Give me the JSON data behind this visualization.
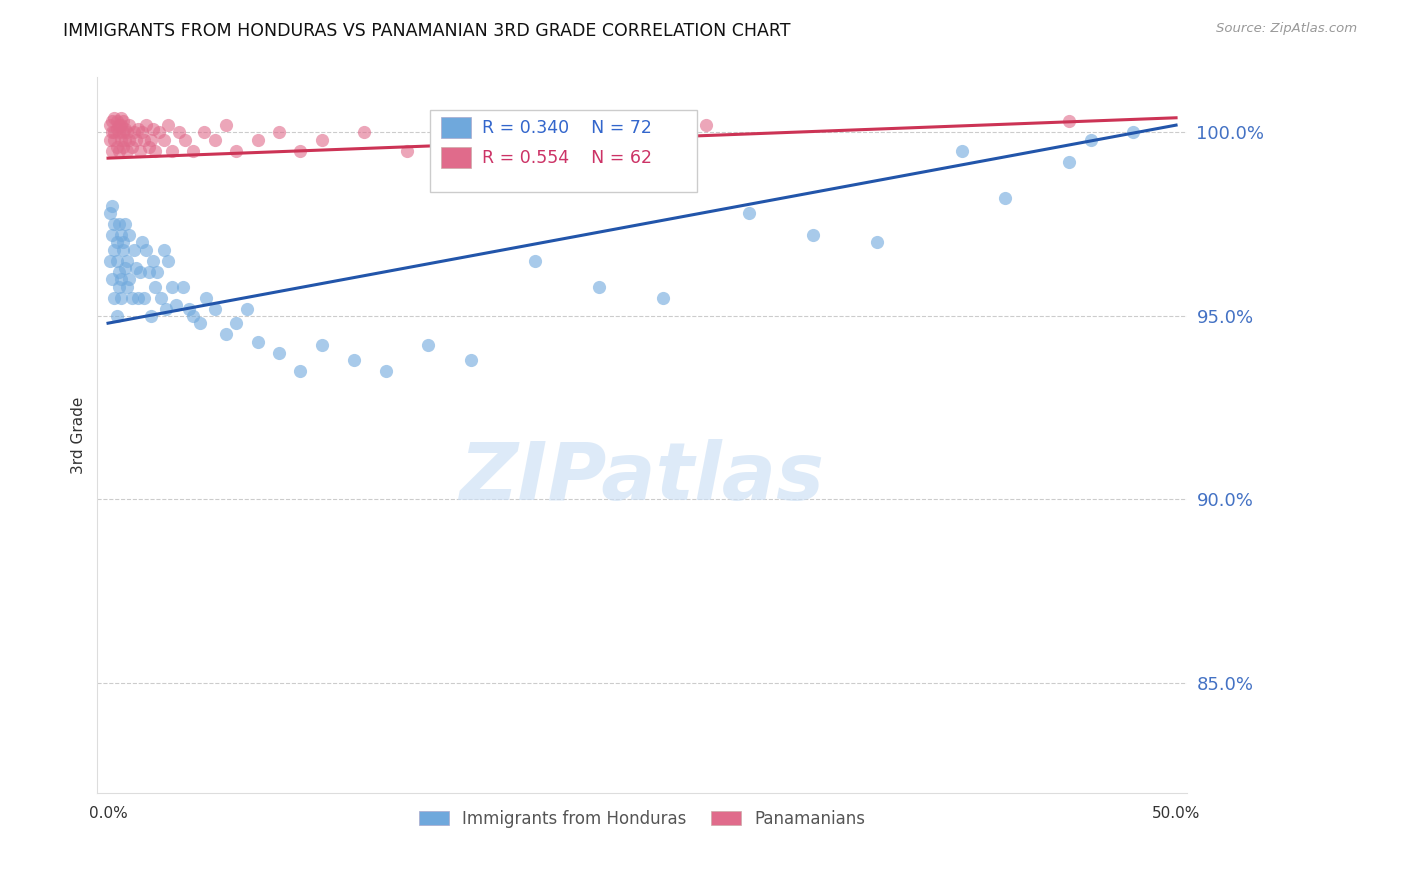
{
  "title": "IMMIGRANTS FROM HONDURAS VS PANAMANIAN 3RD GRADE CORRELATION CHART",
  "source": "Source: ZipAtlas.com",
  "ylabel": "3rd Grade",
  "legend_blue_r": "R = 0.340",
  "legend_blue_n": "N = 72",
  "legend_pink_r": "R = 0.554",
  "legend_pink_n": "N = 62",
  "legend_label_blue": "Immigrants from Honduras",
  "legend_label_pink": "Panamanians",
  "blue_color": "#6fa8dc",
  "pink_color": "#e06b8b",
  "blue_line_color": "#2255aa",
  "pink_line_color": "#cc3355",
  "ylim_low": 82.0,
  "ylim_high": 101.5,
  "xlim_low": -0.005,
  "xlim_high": 0.505,
  "ytick_vals": [
    85.0,
    90.0,
    95.0,
    100.0
  ],
  "blue_trend_x0": 0.0,
  "blue_trend_x1": 0.5,
  "blue_trend_y0": 94.8,
  "blue_trend_y1": 100.2,
  "pink_trend_x0": 0.0,
  "pink_trend_x1": 0.5,
  "pink_trend_y0": 99.3,
  "pink_trend_y1": 100.4,
  "blue_dots_x": [
    0.001,
    0.001,
    0.002,
    0.002,
    0.002,
    0.003,
    0.003,
    0.003,
    0.004,
    0.004,
    0.004,
    0.005,
    0.005,
    0.005,
    0.006,
    0.006,
    0.006,
    0.007,
    0.007,
    0.008,
    0.008,
    0.009,
    0.009,
    0.01,
    0.01,
    0.011,
    0.012,
    0.013,
    0.014,
    0.015,
    0.016,
    0.017,
    0.018,
    0.019,
    0.02,
    0.021,
    0.022,
    0.023,
    0.025,
    0.026,
    0.027,
    0.028,
    0.03,
    0.032,
    0.035,
    0.038,
    0.04,
    0.043,
    0.046,
    0.05,
    0.055,
    0.06,
    0.065,
    0.07,
    0.08,
    0.09,
    0.1,
    0.115,
    0.13,
    0.15,
    0.17,
    0.2,
    0.23,
    0.26,
    0.3,
    0.33,
    0.36,
    0.4,
    0.42,
    0.45,
    0.46,
    0.48
  ],
  "blue_dots_y": [
    96.5,
    97.8,
    96.0,
    97.2,
    98.0,
    95.5,
    96.8,
    97.5,
    95.0,
    96.5,
    97.0,
    96.2,
    97.5,
    95.8,
    96.0,
    97.2,
    95.5,
    96.8,
    97.0,
    96.3,
    97.5,
    95.8,
    96.5,
    96.0,
    97.2,
    95.5,
    96.8,
    96.3,
    95.5,
    96.2,
    97.0,
    95.5,
    96.8,
    96.2,
    95.0,
    96.5,
    95.8,
    96.2,
    95.5,
    96.8,
    95.2,
    96.5,
    95.8,
    95.3,
    95.8,
    95.2,
    95.0,
    94.8,
    95.5,
    95.2,
    94.5,
    94.8,
    95.2,
    94.3,
    94.0,
    93.5,
    94.2,
    93.8,
    93.5,
    94.2,
    93.8,
    96.5,
    95.8,
    95.5,
    97.8,
    97.2,
    97.0,
    99.5,
    98.2,
    99.2,
    99.8,
    100.0
  ],
  "pink_dots_x": [
    0.001,
    0.001,
    0.002,
    0.002,
    0.002,
    0.003,
    0.003,
    0.003,
    0.004,
    0.004,
    0.004,
    0.005,
    0.005,
    0.005,
    0.006,
    0.006,
    0.006,
    0.007,
    0.007,
    0.007,
    0.008,
    0.008,
    0.009,
    0.009,
    0.01,
    0.01,
    0.011,
    0.012,
    0.013,
    0.014,
    0.015,
    0.016,
    0.017,
    0.018,
    0.019,
    0.02,
    0.021,
    0.022,
    0.024,
    0.026,
    0.028,
    0.03,
    0.033,
    0.036,
    0.04,
    0.045,
    0.05,
    0.055,
    0.06,
    0.07,
    0.08,
    0.09,
    0.1,
    0.12,
    0.14,
    0.16,
    0.18,
    0.2,
    0.22,
    0.25,
    0.28,
    0.45
  ],
  "pink_dots_y": [
    99.8,
    100.2,
    99.5,
    100.0,
    100.3,
    99.8,
    100.0,
    100.4,
    99.6,
    100.1,
    100.3,
    99.5,
    100.0,
    100.2,
    99.8,
    100.2,
    100.4,
    99.6,
    100.0,
    100.3,
    99.8,
    100.1,
    99.5,
    100.0,
    99.8,
    100.2,
    99.6,
    100.0,
    99.8,
    100.1,
    99.5,
    100.0,
    99.8,
    100.2,
    99.6,
    99.8,
    100.1,
    99.5,
    100.0,
    99.8,
    100.2,
    99.5,
    100.0,
    99.8,
    99.5,
    100.0,
    99.8,
    100.2,
    99.5,
    99.8,
    100.0,
    99.5,
    99.8,
    100.0,
    99.5,
    99.8,
    100.0,
    99.5,
    99.8,
    100.0,
    100.2,
    100.3
  ]
}
